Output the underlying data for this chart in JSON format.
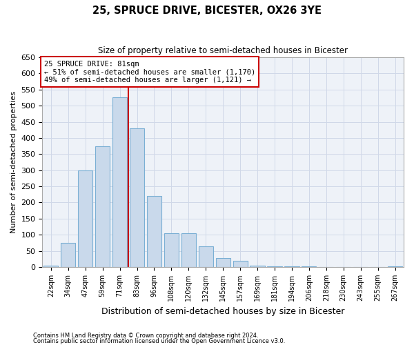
{
  "title": "25, SPRUCE DRIVE, BICESTER, OX26 3YE",
  "subtitle": "Size of property relative to semi-detached houses in Bicester",
  "xlabel": "Distribution of semi-detached houses by size in Bicester",
  "ylabel": "Number of semi-detached properties",
  "annotation_line1": "25 SPRUCE DRIVE: 81sqm",
  "annotation_line2": "← 51% of semi-detached houses are smaller (1,170)",
  "annotation_line3": "49% of semi-detached houses are larger (1,121) →",
  "footer1": "Contains HM Land Registry data © Crown copyright and database right 2024.",
  "footer2": "Contains public sector information licensed under the Open Government Licence v3.0.",
  "bin_labels": [
    "22sqm",
    "34sqm",
    "47sqm",
    "59sqm",
    "71sqm",
    "83sqm",
    "96sqm",
    "108sqm",
    "120sqm",
    "132sqm",
    "145sqm",
    "157sqm",
    "169sqm",
    "181sqm",
    "194sqm",
    "206sqm",
    "218sqm",
    "230sqm",
    "243sqm",
    "255sqm",
    "267sqm"
  ],
  "bar_values": [
    5,
    75,
    300,
    375,
    525,
    430,
    220,
    105,
    105,
    65,
    28,
    20,
    5,
    3,
    3,
    1,
    0,
    0,
    0,
    0,
    2
  ],
  "bar_color": "#c9d9eb",
  "bar_edgecolor": "#7aafd4",
  "vline_color": "#cc0000",
  "grid_color": "#d0d8e8",
  "bg_color": "#eef2f8",
  "box_edgecolor": "#cc0000",
  "ylim": [
    0,
    650
  ],
  "yticks": [
    0,
    50,
    100,
    150,
    200,
    250,
    300,
    350,
    400,
    450,
    500,
    550,
    600,
    650
  ]
}
